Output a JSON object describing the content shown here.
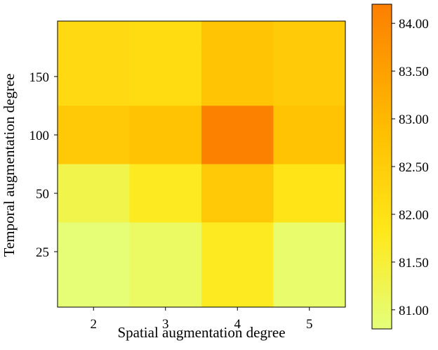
{
  "chart_data": {
    "type": "heatmap",
    "title": "",
    "xlabel": "Spatial augmentation degree",
    "ylabel": "Temporal augmentation degree",
    "x_categories": [
      "2",
      "3",
      "4",
      "5"
    ],
    "y_categories": [
      "150",
      "100",
      "50",
      "25"
    ],
    "values": [
      [
        82.2,
        82.15,
        82.7,
        82.55
      ],
      [
        82.6,
        82.75,
        84.15,
        82.75
      ],
      [
        81.3,
        81.75,
        82.6,
        81.9
      ],
      [
        80.85,
        81.05,
        81.75,
        80.95
      ]
    ],
    "colorbar": {
      "range": [
        80.8,
        84.2
      ],
      "ticks": [
        "81.00",
        "81.50",
        "82.00",
        "82.50",
        "83.00",
        "83.50",
        "84.00"
      ],
      "tick_values": [
        81.0,
        81.5,
        82.0,
        82.5,
        83.0,
        83.5,
        84.0
      ],
      "colormap": "Wistia"
    },
    "grid": false
  }
}
